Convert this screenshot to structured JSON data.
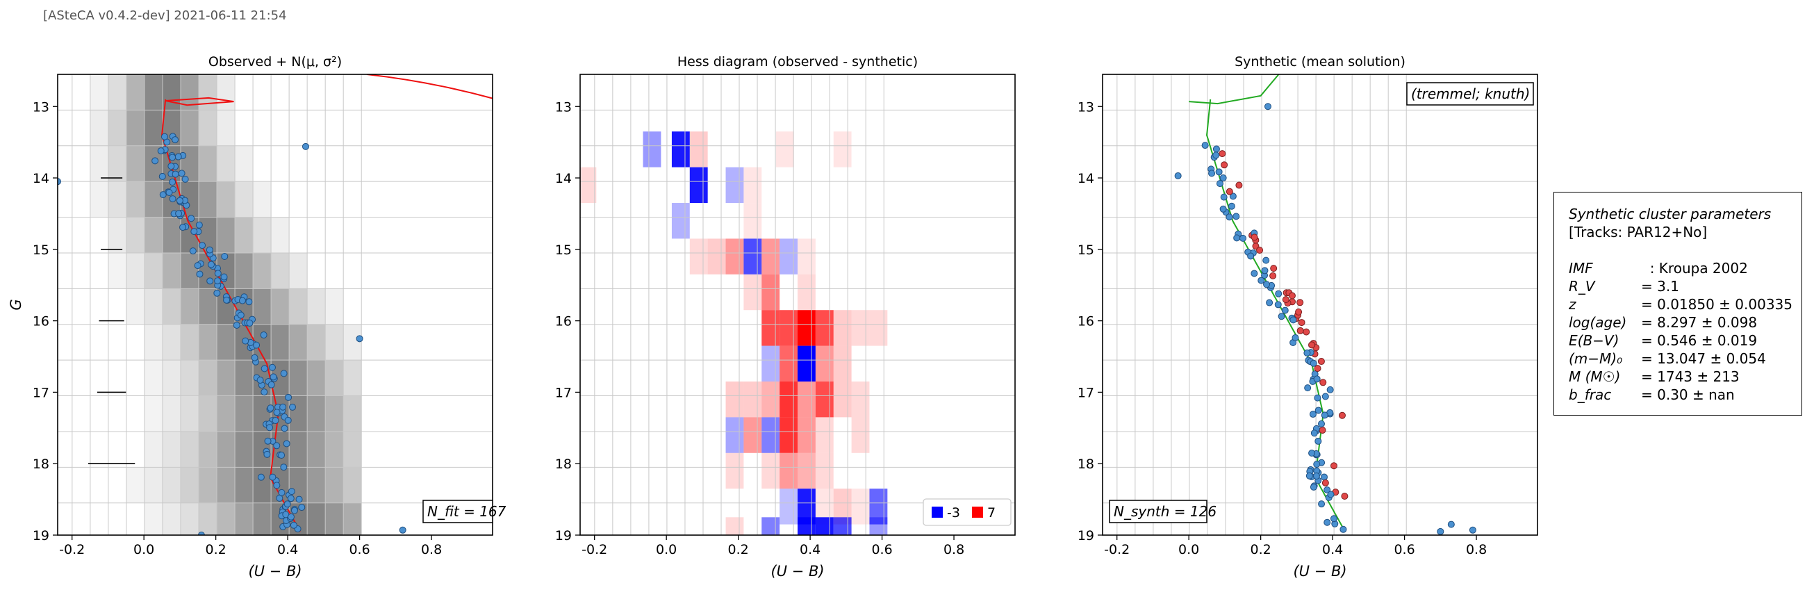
{
  "header": "[ASteCA v0.4.2-dev] 2021-06-11 21:54",
  "params_box": {
    "title": "Synthetic cluster parameters",
    "tracks": "[Tracks: PAR12+No]",
    "rows": [
      {
        "key": "IMF",
        "value": "  : Kroupa 2002"
      },
      {
        "key": "R_V",
        "value": "= 3.1"
      },
      {
        "key": "z",
        "value": "= 0.01850 ± 0.00335"
      },
      {
        "key": "log(age)",
        "value": "= 8.297 ± 0.098"
      },
      {
        "key": "E(B−V)",
        "value": "= 0.546 ± 0.019"
      },
      {
        "key": "(m−M)₀",
        "value": "= 13.047 ± 0.054"
      },
      {
        "key": "M (M☉)",
        "value": "= 1743 ± 213"
      },
      {
        "key": "b_frac",
        "value": "= 0.30 ± nan"
      }
    ]
  },
  "chart_data": [
    {
      "type": "scatter",
      "title": "Observed + N(μ, σ²)",
      "xlabel": "(U − B)",
      "ylabel": "G",
      "xlim": [
        -0.24,
        0.97
      ],
      "ylim": [
        19,
        12.55
      ],
      "xticks": [
        "-0.2",
        "0.0",
        "0.2",
        "0.4",
        "0.6",
        "0.8"
      ],
      "yticks": [
        "13",
        "14",
        "15",
        "16",
        "17",
        "18",
        "19"
      ],
      "annotation": "N_fit = 167",
      "errorbars": [
        {
          "y": 14.0,
          "xerr": 0.03
        },
        {
          "y": 15.0,
          "xerr": 0.03
        },
        {
          "y": 16.0,
          "xerr": 0.035
        },
        {
          "y": 17.0,
          "xerr": 0.04
        },
        {
          "y": 18.0,
          "xerr": 0.065
        }
      ],
      "isochrone_color": "#ee1111",
      "point_color": "#4a90d0"
    },
    {
      "type": "heatmap",
      "title": "Hess diagram (observed - synthetic)",
      "xlabel": "(U − B)",
      "xlim": [
        -0.24,
        0.97
      ],
      "ylim": [
        19,
        12.55
      ],
      "xticks": [
        "-0.2",
        "0.0",
        "0.2",
        "0.4",
        "0.6",
        "0.8"
      ],
      "yticks": [
        "13",
        "14",
        "15",
        "16",
        "17",
        "18",
        "19"
      ],
      "legend": [
        {
          "label": "-3",
          "color": "#0000ff"
        },
        {
          "label": "7",
          "color": "#ff0000"
        }
      ]
    },
    {
      "type": "scatter",
      "title": "Synthetic (mean solution)",
      "xlabel": "(U − B)",
      "xlim": [
        -0.24,
        0.97
      ],
      "ylim": [
        19,
        12.55
      ],
      "xticks": [
        "-0.2",
        "0.0",
        "0.2",
        "0.4",
        "0.6",
        "0.8"
      ],
      "yticks": [
        "13",
        "14",
        "15",
        "16",
        "17",
        "18",
        "19"
      ],
      "corner_label": "(tremmel; knuth)",
      "annotation": "N_synth = 126",
      "isochrone_color": "#22aa22",
      "single_color": "#4a90d0",
      "binary_color": "#e04848"
    }
  ]
}
